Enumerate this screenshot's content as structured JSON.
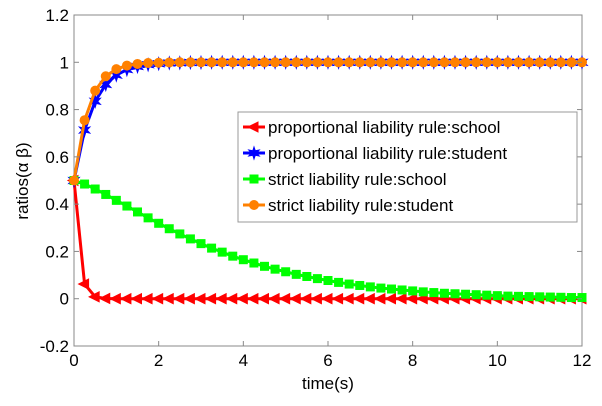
{
  "chart_data": {
    "type": "line",
    "title": "",
    "xlabel": "time(s)",
    "ylabel": "ratios(α β)",
    "xlim": [
      0,
      12
    ],
    "ylim": [
      -0.2,
      1.2
    ],
    "xticks": [
      "0",
      "2",
      "4",
      "6",
      "8",
      "10",
      "12"
    ],
    "yticks": [
      "-0.2",
      "0",
      "0.2",
      "0.4",
      "0.6",
      "0.8",
      "1",
      "1.2"
    ],
    "grid": false,
    "legend_position": "center-right",
    "x": [
      0,
      0.25,
      0.5,
      0.75,
      1,
      1.25,
      1.5,
      1.75,
      2,
      2.25,
      2.5,
      2.75,
      3,
      3.25,
      3.5,
      3.75,
      4,
      4.25,
      4.5,
      4.75,
      5,
      5.25,
      5.5,
      5.75,
      6,
      6.25,
      6.5,
      6.75,
      7,
      7.25,
      7.5,
      7.75,
      8,
      8.25,
      8.5,
      8.75,
      9,
      9.25,
      9.5,
      9.75,
      10,
      10.25,
      10.5,
      10.75,
      11,
      11.25,
      11.5,
      11.75,
      12
    ],
    "series": [
      {
        "name": "proportional liability rule:school",
        "color": "#ff0000",
        "marker": "triangle-left",
        "values": [
          0.5,
          0.062,
          0.008,
          0.001,
          0,
          0,
          0,
          0,
          0,
          0,
          0,
          0,
          0,
          0,
          0,
          0,
          0,
          0,
          0,
          0,
          0,
          0,
          0,
          0,
          0,
          0,
          0,
          0,
          0,
          0,
          0,
          0,
          0,
          0,
          0,
          0,
          0,
          0,
          0,
          0,
          0,
          0,
          0,
          0,
          0,
          0,
          0,
          0,
          0
        ]
      },
      {
        "name": "proportional liability rule:student",
        "color": "#0000ff",
        "marker": "star",
        "values": [
          0.5,
          0.713,
          0.835,
          0.906,
          0.946,
          0.969,
          0.982,
          0.99,
          0.994,
          0.997,
          0.998,
          0.999,
          0.999,
          1,
          1,
          1,
          1,
          1,
          1,
          1,
          1,
          1,
          1,
          1,
          1,
          1,
          1,
          1,
          1,
          1,
          1,
          1,
          1,
          1,
          1,
          1,
          1,
          1,
          1,
          1,
          1,
          1,
          1,
          1,
          1,
          1,
          1,
          1,
          1
        ]
      },
      {
        "name": "strict liability rule:school",
        "color": "#00ff00",
        "marker": "square",
        "values": [
          0.5,
          0.485,
          0.464,
          0.441,
          0.416,
          0.392,
          0.367,
          0.342,
          0.319,
          0.296,
          0.274,
          0.253,
          0.233,
          0.214,
          0.197,
          0.18,
          0.165,
          0.151,
          0.137,
          0.125,
          0.114,
          0.103,
          0.094,
          0.085,
          0.077,
          0.069,
          0.062,
          0.056,
          0.05,
          0.045,
          0.041,
          0.037,
          0.033,
          0.029,
          0.026,
          0.023,
          0.021,
          0.019,
          0.017,
          0.015,
          0.013,
          0.011,
          0.01,
          0.009,
          0.008,
          0.007,
          0.006,
          0.005,
          0.005
        ]
      },
      {
        "name": "strict liability rule:student",
        "color": "#ff8000",
        "marker": "circle",
        "values": [
          0.5,
          0.755,
          0.88,
          0.941,
          0.971,
          0.986,
          0.993,
          0.997,
          0.998,
          0.999,
          1,
          1,
          1,
          1,
          1,
          1,
          1,
          1,
          1,
          1,
          1,
          1,
          1,
          1,
          1,
          1,
          1,
          1,
          1,
          1,
          1,
          1,
          1,
          1,
          1,
          1,
          1,
          1,
          1,
          1,
          1,
          1,
          1,
          1,
          1,
          1,
          1,
          1,
          1
        ]
      }
    ]
  }
}
